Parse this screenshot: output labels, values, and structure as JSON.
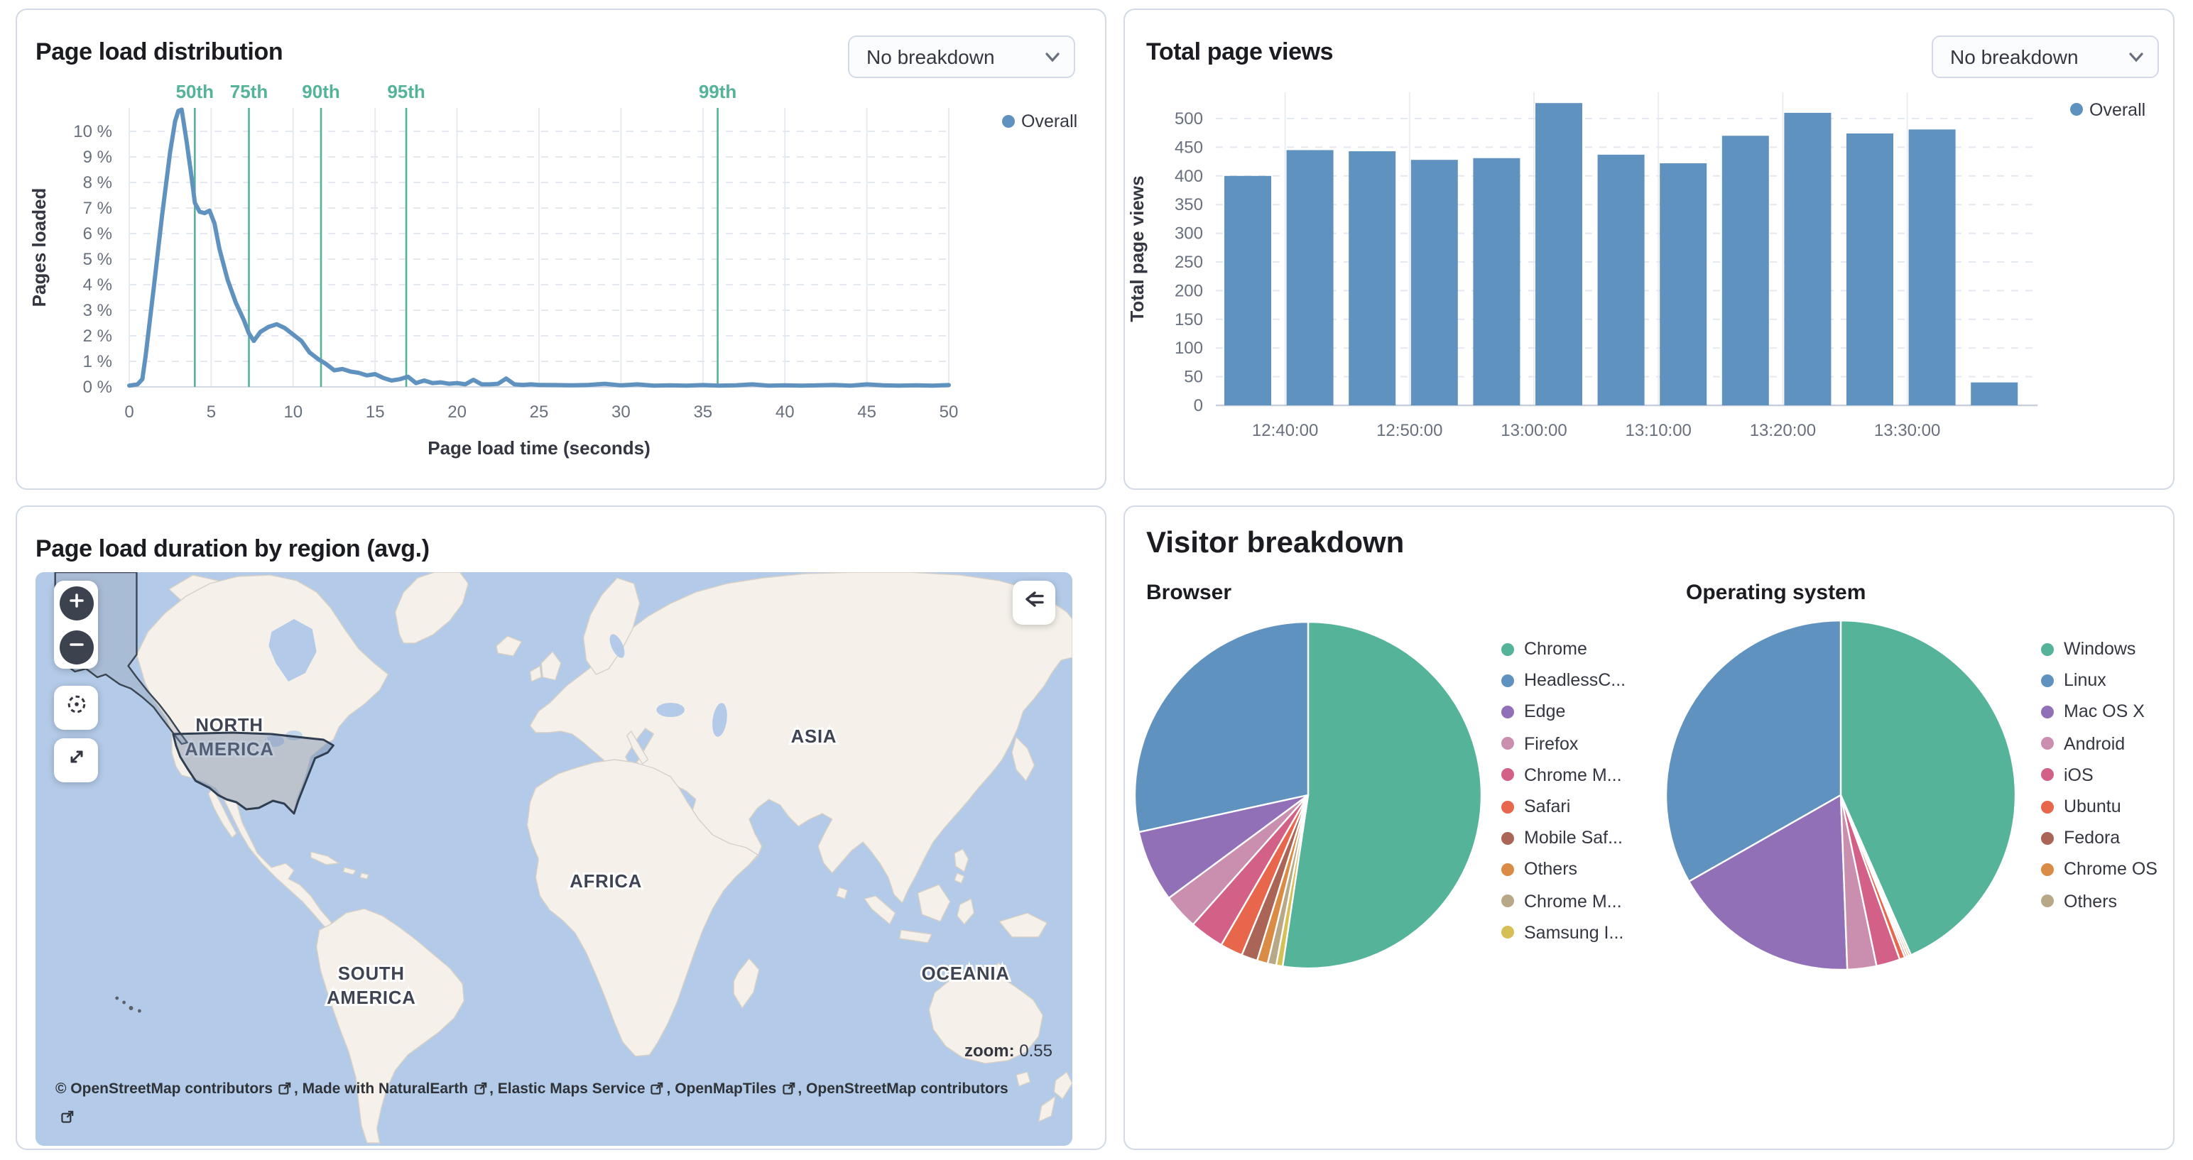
{
  "panels": {
    "load_distribution": {
      "title": "Page load distribution",
      "breakdown_select": "No breakdown",
      "legend": "Overall",
      "chart_data": {
        "type": "line",
        "title": "Page load distribution",
        "xlabel": "Page load time (seconds)",
        "ylabel": "Pages loaded",
        "xlim": [
          0,
          50
        ],
        "ylim": [
          0,
          10.9
        ],
        "x_ticks": [
          0,
          5,
          10,
          15,
          20,
          25,
          30,
          35,
          40,
          45,
          50
        ],
        "y_ticks": [
          0,
          1,
          2,
          3,
          4,
          5,
          6,
          7,
          8,
          9,
          10
        ],
        "y_tick_suffix": " %",
        "grid": "horizontal-dashed, vertical-solid",
        "legend_position": "top-right",
        "line_color": "#6092C0",
        "percentile_color": "#54B399",
        "percentiles": [
          {
            "label": "50th",
            "x": 4.0
          },
          {
            "label": "75th",
            "x": 7.3
          },
          {
            "label": "90th",
            "x": 11.7
          },
          {
            "label": "95th",
            "x": 16.9
          },
          {
            "label": "99th",
            "x": 35.9
          }
        ],
        "series": [
          {
            "name": "Overall",
            "points": [
              [
                0,
                0.05
              ],
              [
                0.5,
                0.1
              ],
              [
                0.8,
                0.3
              ],
              [
                1,
                1.2
              ],
              [
                1.5,
                3.9
              ],
              [
                2,
                6.7
              ],
              [
                2.5,
                9.2
              ],
              [
                2.8,
                10.4
              ],
              [
                3,
                10.8
              ],
              [
                3.2,
                10.85
              ],
              [
                3.5,
                9.6
              ],
              [
                3.8,
                8.2
              ],
              [
                4,
                7.2
              ],
              [
                4.3,
                6.85
              ],
              [
                4.6,
                6.8
              ],
              [
                4.9,
                6.9
              ],
              [
                5.2,
                6.4
              ],
              [
                5.5,
                5.4
              ],
              [
                6,
                4.2
              ],
              [
                6.5,
                3.3
              ],
              [
                7,
                2.6
              ],
              [
                7.3,
                2.1
              ],
              [
                7.6,
                1.8
              ],
              [
                8,
                2.15
              ],
              [
                8.5,
                2.35
              ],
              [
                9,
                2.45
              ],
              [
                9.5,
                2.3
              ],
              [
                10,
                2.05
              ],
              [
                10.5,
                1.8
              ],
              [
                11,
                1.35
              ],
              [
                11.5,
                1.1
              ],
              [
                12,
                0.9
              ],
              [
                12.5,
                0.65
              ],
              [
                13,
                0.7
              ],
              [
                13.5,
                0.6
              ],
              [
                14,
                0.55
              ],
              [
                14.5,
                0.45
              ],
              [
                15,
                0.5
              ],
              [
                15.5,
                0.35
              ],
              [
                16,
                0.25
              ],
              [
                16.5,
                0.3
              ],
              [
                17,
                0.4
              ],
              [
                17.5,
                0.15
              ],
              [
                18,
                0.25
              ],
              [
                18.5,
                0.15
              ],
              [
                19,
                0.18
              ],
              [
                19.5,
                0.12
              ],
              [
                20,
                0.15
              ],
              [
                20.5,
                0.1
              ],
              [
                21,
                0.28
              ],
              [
                21.5,
                0.1
              ],
              [
                22,
                0.1
              ],
              [
                22.5,
                0.12
              ],
              [
                23,
                0.33
              ],
              [
                23.5,
                0.1
              ],
              [
                24,
                0.08
              ],
              [
                24.5,
                0.1
              ],
              [
                25,
                0.08
              ],
              [
                26,
                0.07
              ],
              [
                27,
                0.06
              ],
              [
                28,
                0.08
              ],
              [
                29,
                0.12
              ],
              [
                30,
                0.06
              ],
              [
                31,
                0.1
              ],
              [
                32,
                0.05
              ],
              [
                33,
                0.06
              ],
              [
                34,
                0.05
              ],
              [
                35,
                0.07
              ],
              [
                36,
                0.05
              ],
              [
                37,
                0.06
              ],
              [
                38,
                0.1
              ],
              [
                39,
                0.05
              ],
              [
                40,
                0.06
              ],
              [
                41,
                0.05
              ],
              [
                42,
                0.06
              ],
              [
                43,
                0.08
              ],
              [
                44,
                0.05
              ],
              [
                45,
                0.1
              ],
              [
                46,
                0.06
              ],
              [
                47,
                0.05
              ],
              [
                48,
                0.06
              ],
              [
                49,
                0.05
              ],
              [
                50,
                0.07
              ]
            ]
          }
        ]
      }
    },
    "page_views": {
      "title": "Total page views",
      "breakdown_select": "No breakdown",
      "legend": "Overall",
      "chart_data": {
        "type": "bar",
        "title": "Total page views",
        "xlabel": "",
        "ylabel": "Total page views",
        "ylim": [
          0,
          530
        ],
        "y_ticks": [
          0,
          50,
          100,
          150,
          200,
          250,
          300,
          350,
          400,
          450,
          500
        ],
        "x_tick_labels": [
          "12:40:00",
          "12:50:00",
          "13:00:00",
          "13:10:00",
          "13:20:00",
          "13:30:00"
        ],
        "bucket_minutes": 5,
        "grid": "horizontal-dashed, vertical-solid-at-labels",
        "legend_position": "top-right",
        "bar_color": "#6092C0",
        "values": [
          400,
          445,
          443,
          428,
          431,
          527,
          437,
          422,
          470,
          510,
          474,
          481,
          40
        ]
      }
    },
    "map": {
      "title": "Page load duration by region (avg.)",
      "zoom_label": "zoom:",
      "zoom_value": "0.55",
      "continent_labels": [
        "NORTH AMERICA",
        "SOUTH AMERICA",
        "AFRICA",
        "ASIA",
        "OCEANIA"
      ],
      "highlighted_region": "United States",
      "attribution_links": [
        "© OpenStreetMap contributors",
        ", Made with NaturalEarth",
        ", Elastic Maps Service",
        ", OpenMapTiles",
        ", OpenStreetMap contributors"
      ]
    },
    "visitor_breakdown": {
      "title": "Visitor breakdown",
      "browser": {
        "title": "Browser",
        "chart_data": {
          "type": "pie",
          "labels": [
            "Chrome",
            "HeadlessC...",
            "Edge",
            "Firefox",
            "Chrome M...",
            "Safari",
            "Mobile Saf...",
            "Others",
            "Chrome M...",
            "Samsung I..."
          ],
          "values": [
            52.3,
            28.4,
            6.7,
            3.3,
            3.2,
            2.1,
            1.5,
            1.0,
            0.8,
            0.6
          ],
          "colors": [
            "#54B399",
            "#6092C0",
            "#9170B8",
            "#CA8EAE",
            "#D36086",
            "#E7664C",
            "#AA6556",
            "#DA8B45",
            "#B9A888",
            "#D6BF57"
          ],
          "legend_position": "right"
        }
      },
      "os": {
        "title": "Operating system",
        "chart_data": {
          "type": "pie",
          "labels": [
            "Windows",
            "Linux",
            "Mac OS X",
            "Android",
            "iOS",
            "Ubuntu",
            "Fedora",
            "Chrome OS",
            "Others"
          ],
          "values": [
            43.5,
            33.3,
            17.4,
            2.7,
            2.2,
            0.5,
            0.2,
            0.2,
            0.2
          ],
          "colors": [
            "#54B399",
            "#6092C0",
            "#9170B8",
            "#CA8EAE",
            "#D36086",
            "#E7664C",
            "#AA6556",
            "#DA8B45",
            "#B9A888"
          ],
          "legend_position": "right"
        }
      }
    }
  },
  "colors": {
    "accent_blue": "#6092C0",
    "accent_teal": "#54B399",
    "panel_border": "#D3DAE6",
    "axis_text": "#69707D",
    "title_text": "#1A1C21",
    "ocean": "#B3CBE8",
    "land": "#F5F1EA"
  }
}
